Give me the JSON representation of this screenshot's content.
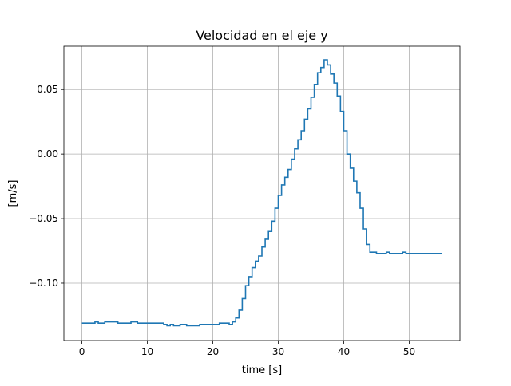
{
  "chart_data": {
    "type": "line",
    "title": "Velocidad en el eje y",
    "xlabel": "time [s]",
    "ylabel": "[m/s]",
    "xlim": [
      -2.75,
      57.75
    ],
    "ylim": [
      -0.1445,
      0.0835
    ],
    "xticks": [
      0,
      10,
      20,
      30,
      40,
      50
    ],
    "yticks": [
      -0.1,
      -0.05,
      0.0,
      0.05
    ],
    "xtick_labels": [
      "0",
      "10",
      "20",
      "30",
      "40",
      "50"
    ],
    "ytick_labels": [
      "−0.10",
      "−0.05",
      "0.00",
      "0.05"
    ],
    "grid": true,
    "step": "post",
    "line_color": "#1f77b4",
    "series": [
      {
        "x": [
          0,
          2,
          2.5,
          3.5,
          4.5,
          5.5,
          6.5,
          7.5,
          8.5,
          9.5,
          10.5,
          11.5,
          12.5,
          13,
          13.5,
          14,
          15,
          16,
          17,
          18,
          19,
          20,
          21,
          22,
          22.5,
          23,
          23.5,
          24,
          24.5,
          25,
          25.5,
          26,
          26.5,
          27,
          27.5,
          28,
          28.5,
          29,
          29.5,
          30,
          30.5,
          31,
          31.5,
          32,
          32.5,
          33,
          33.5,
          34,
          34.5,
          35,
          35.5,
          36,
          36.5,
          37,
          37.5,
          38,
          38.5,
          39,
          39.5,
          40,
          40.5,
          41,
          41.5,
          42,
          42.5,
          43,
          43.5,
          44,
          44.5,
          45,
          45.5,
          46,
          46.5,
          47,
          47.5,
          48,
          48.5,
          49,
          49.5,
          50,
          50.5,
          51,
          51.5,
          52,
          52.5,
          53,
          53.5,
          54,
          54.5,
          55
        ],
        "y": [
          -0.131,
          -0.13,
          -0.131,
          -0.13,
          -0.13,
          -0.131,
          -0.131,
          -0.13,
          -0.131,
          -0.131,
          -0.131,
          -0.131,
          -0.132,
          -0.133,
          -0.132,
          -0.133,
          -0.132,
          -0.133,
          -0.133,
          -0.132,
          -0.132,
          -0.132,
          -0.131,
          -0.131,
          -0.132,
          -0.13,
          -0.127,
          -0.121,
          -0.112,
          -0.102,
          -0.095,
          -0.088,
          -0.083,
          -0.079,
          -0.072,
          -0.066,
          -0.06,
          -0.052,
          -0.042,
          -0.032,
          -0.024,
          -0.018,
          -0.012,
          -0.004,
          0.004,
          0.011,
          0.018,
          0.027,
          0.035,
          0.044,
          0.054,
          0.063,
          0.067,
          0.073,
          0.069,
          0.062,
          0.055,
          0.045,
          0.033,
          0.018,
          0.0,
          -0.011,
          -0.021,
          -0.03,
          -0.042,
          -0.058,
          -0.07,
          -0.076,
          -0.076,
          -0.077,
          -0.077,
          -0.077,
          -0.076,
          -0.077,
          -0.077,
          -0.077,
          -0.077,
          -0.076,
          -0.077,
          -0.077,
          -0.077,
          -0.077,
          -0.077,
          -0.077,
          -0.077,
          -0.077,
          -0.077,
          -0.077,
          -0.077,
          -0.077
        ]
      }
    ]
  }
}
